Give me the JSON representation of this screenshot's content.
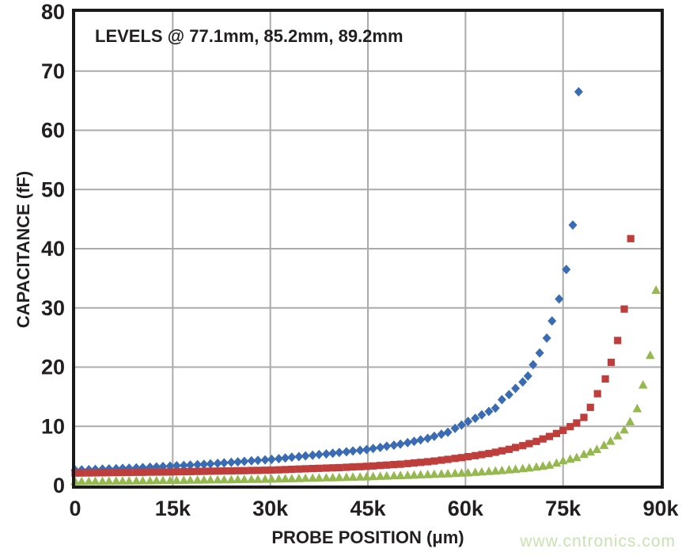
{
  "page": {
    "background": "#ffffff"
  },
  "watermark": {
    "text": "www.cntronics.com",
    "color": "#c8e3b2"
  },
  "chart_data": {
    "type": "scatter",
    "title_annotation": "LEVELS @ 77.1mm, 85.2mm, 89.2mm",
    "xlabel": "PROBE POSITION (μm)",
    "ylabel": "CAPACITANCE (fF)",
    "x_unit_note": "x values are in thousands of μm",
    "xlim": [
      0,
      90
    ],
    "ylim": [
      0,
      80
    ],
    "grid": true,
    "legend_position": "none",
    "x_tick_values": [
      0,
      15,
      30,
      45,
      60,
      75,
      90
    ],
    "x_tick_labels": [
      "0",
      "15k",
      "30k",
      "45k",
      "60k",
      "75k",
      "90k"
    ],
    "y_tick_values": [
      0,
      10,
      20,
      30,
      40,
      50,
      60,
      70,
      80
    ],
    "y_tick_labels": [
      "0",
      "10",
      "20",
      "30",
      "40",
      "50",
      "60",
      "70",
      "80"
    ],
    "grid_color": "#ababab",
    "frame_color": "#1a1a1a",
    "text_color": "#231f20",
    "levels_mm": [
      77.1,
      85.2,
      89.2
    ],
    "series": [
      {
        "name": "level-77.1mm",
        "marker": "diamond",
        "color": "#3a6cb4",
        "x": [
          0,
          1,
          2.1,
          3.1,
          4.2,
          5.2,
          6.3,
          7.3,
          8.3,
          9.4,
          10.4,
          11.5,
          12.5,
          13.5,
          14.6,
          15.6,
          16.7,
          17.7,
          18.8,
          19.8,
          20.8,
          21.9,
          22.9,
          24,
          25,
          26,
          27.1,
          28.1,
          29.2,
          30.2,
          31.3,
          32.3,
          33.3,
          34.4,
          35.4,
          36.5,
          37.5,
          38.6,
          39.6,
          40.6,
          41.7,
          42.7,
          43.8,
          44.8,
          45.8,
          46.9,
          47.9,
          49,
          50,
          51.1,
          52.1,
          53.1,
          54.2,
          55.2,
          56.3,
          57.3,
          58.4,
          59.4,
          60.4,
          61.5,
          62.5,
          63.6,
          64.6,
          65.6,
          66.7,
          67.7,
          68.8,
          69.6,
          70.4,
          71.4,
          72.5,
          73.3,
          74.4,
          75.5,
          76.5,
          77.4
        ],
        "y": [
          2.6,
          2.64,
          2.68,
          2.73,
          2.77,
          2.81,
          2.85,
          2.89,
          2.93,
          2.98,
          3.03,
          3.09,
          3.15,
          3.21,
          3.28,
          3.34,
          3.4,
          3.46,
          3.53,
          3.59,
          3.67,
          3.75,
          3.83,
          3.92,
          4,
          4.08,
          4.17,
          4.25,
          4.33,
          4.42,
          4.54,
          4.65,
          4.77,
          4.88,
          5,
          5.11,
          5.23,
          5.34,
          5.46,
          5.58,
          5.7,
          5.83,
          5.95,
          6.08,
          6.25,
          6.44,
          6.63,
          6.81,
          7,
          7.24,
          7.47,
          7.71,
          7.96,
          8.31,
          8.66,
          9.01,
          9.64,
          10.22,
          10.82,
          11.36,
          11.94,
          12.51,
          13.08,
          14.5,
          15.35,
          16.4,
          17.5,
          18.5,
          20.4,
          22.4,
          24.9,
          27.8,
          31.5,
          36.5,
          44,
          66.5
        ]
      },
      {
        "name": "level-85.2mm",
        "marker": "square",
        "color": "#be3e3c",
        "x": [
          0,
          1,
          2.1,
          3.1,
          4.2,
          5.2,
          6.3,
          7.3,
          8.3,
          9.4,
          10.4,
          11.5,
          12.5,
          13.5,
          14.6,
          15.6,
          16.7,
          17.7,
          18.8,
          19.8,
          20.8,
          21.9,
          22.9,
          24,
          25,
          26,
          27.1,
          28.1,
          29.2,
          30.2,
          31.3,
          32.3,
          33.3,
          34.4,
          35.4,
          36.5,
          37.5,
          38.6,
          39.6,
          40.6,
          41.7,
          42.7,
          43.8,
          44.8,
          45.8,
          46.9,
          47.9,
          49,
          50,
          51.1,
          52.1,
          53.1,
          54.2,
          55.2,
          56.3,
          57.3,
          58.4,
          59.4,
          60.4,
          61.5,
          62.5,
          63.6,
          64.6,
          65.6,
          66.7,
          67.7,
          68.8,
          69.8,
          70.9,
          71.9,
          72.9,
          74,
          75,
          76.1,
          77.1,
          78.2,
          79.2,
          80.3,
          81.5,
          82.4,
          83.4,
          84.4,
          85.4
        ],
        "y": [
          2.1,
          2.11,
          2.13,
          2.14,
          2.16,
          2.17,
          2.18,
          2.2,
          2.21,
          2.23,
          2.24,
          2.26,
          2.27,
          2.28,
          2.29,
          2.31,
          2.33,
          2.35,
          2.38,
          2.4,
          2.42,
          2.44,
          2.46,
          2.48,
          2.5,
          2.52,
          2.54,
          2.56,
          2.58,
          2.61,
          2.65,
          2.69,
          2.73,
          2.78,
          2.82,
          2.86,
          2.9,
          2.94,
          2.98,
          3.03,
          3.08,
          3.14,
          3.19,
          3.24,
          3.31,
          3.38,
          3.45,
          3.53,
          3.6,
          3.7,
          3.81,
          3.91,
          4.02,
          4.13,
          4.28,
          4.42,
          4.57,
          4.71,
          4.87,
          5.05,
          5.22,
          5.41,
          5.62,
          5.86,
          6.12,
          6.42,
          6.73,
          7.08,
          7.45,
          7.86,
          8.28,
          8.79,
          9.31,
          9.94,
          10.57,
          11.5,
          13.2,
          15.5,
          18,
          20.8,
          24.5,
          29.8,
          41.7
        ]
      },
      {
        "name": "level-89.2mm",
        "marker": "triangle",
        "color": "#95b94f",
        "x": [
          0,
          1,
          2.1,
          3.1,
          4.2,
          5.2,
          6.3,
          7.3,
          8.3,
          9.4,
          10.4,
          11.5,
          12.5,
          13.5,
          14.6,
          15.6,
          16.7,
          17.7,
          18.8,
          19.8,
          20.8,
          21.9,
          22.9,
          24,
          25,
          26,
          27.1,
          28.1,
          29.2,
          30.2,
          31.3,
          32.3,
          33.3,
          34.4,
          35.4,
          36.5,
          37.5,
          38.6,
          39.6,
          40.6,
          41.7,
          42.7,
          43.8,
          44.8,
          45.8,
          46.9,
          47.9,
          49,
          50,
          51.1,
          52.1,
          53.1,
          54.2,
          55.2,
          56.3,
          57.3,
          58.4,
          59.4,
          60.4,
          61.5,
          62.5,
          63.6,
          64.6,
          65.6,
          66.7,
          67.7,
          68.8,
          69.8,
          70.9,
          71.9,
          72.9,
          74,
          75,
          76.1,
          77.1,
          78.2,
          79.2,
          80.2,
          81.3,
          82.3,
          83.4,
          84.4,
          85.3,
          86.4,
          87.3,
          88.4,
          89.3
        ],
        "y": [
          0.7,
          0.71,
          0.72,
          0.73,
          0.74,
          0.75,
          0.76,
          0.77,
          0.78,
          0.8,
          0.81,
          0.82,
          0.84,
          0.85,
          0.87,
          0.88,
          0.9,
          0.92,
          0.93,
          0.95,
          0.96,
          0.98,
          0.99,
          1.01,
          1.03,
          1.04,
          1.06,
          1.07,
          1.09,
          1.11,
          1.13,
          1.16,
          1.18,
          1.21,
          1.24,
          1.26,
          1.29,
          1.32,
          1.34,
          1.37,
          1.4,
          1.43,
          1.46,
          1.49,
          1.53,
          1.58,
          1.62,
          1.66,
          1.7,
          1.74,
          1.78,
          1.82,
          1.87,
          1.91,
          1.96,
          2.01,
          2.07,
          2.12,
          2.17,
          2.25,
          2.32,
          2.4,
          2.47,
          2.56,
          2.67,
          2.76,
          2.88,
          2.98,
          3.14,
          3.29,
          3.45,
          3.8,
          4.2,
          4.48,
          4.73,
          5.27,
          5.67,
          6.12,
          6.8,
          7.51,
          8.43,
          9.4,
          10.8,
          13,
          17,
          22,
          33
        ]
      }
    ]
  }
}
